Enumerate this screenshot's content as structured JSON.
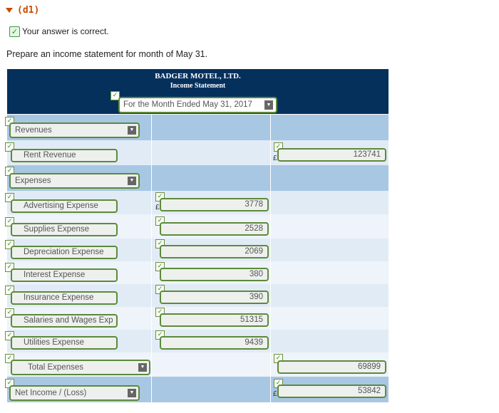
{
  "header": {
    "part": "(d1)",
    "status": "Your answer is correct.",
    "prompt": "Prepare an income statement for month of May 31."
  },
  "statement": {
    "company": "BADGER MOTEL, LTD.",
    "title": "Income Statement",
    "period": "For the Month Ended May 31, 2017"
  },
  "revenues": {
    "label": "Revenues",
    "items": [
      {
        "label": "Rent Revenue",
        "currency": "£",
        "amount": "123741"
      }
    ]
  },
  "expenses": {
    "label": "Expenses",
    "items": [
      {
        "label": "Advertising Expense",
        "currency": "£",
        "amount": "3778"
      },
      {
        "label": "Supplies Expense",
        "currency": "",
        "amount": "2528"
      },
      {
        "label": "Depreciation Expense",
        "currency": "",
        "amount": "2069"
      },
      {
        "label": "Interest Expense",
        "currency": "",
        "amount": "380"
      },
      {
        "label": "Insurance Expense",
        "currency": "",
        "amount": "390"
      },
      {
        "label": "Salaries and Wages Exp",
        "currency": "",
        "amount": "51315"
      },
      {
        "label": "Utilities Expense",
        "currency": "",
        "amount": "9439"
      }
    ]
  },
  "totals": {
    "total_label": "Total Expenses",
    "total_amount": "69899",
    "net_label": "Net Income / (Loss)",
    "net_currency": "£",
    "net_amount": "53842"
  },
  "colors": {
    "header_bg": "#05305c",
    "row_dark": "#a8c7e3",
    "row_light": "#e1ebf6",
    "field_border": "#5c8a3a",
    "part_label": "#c84b00"
  }
}
